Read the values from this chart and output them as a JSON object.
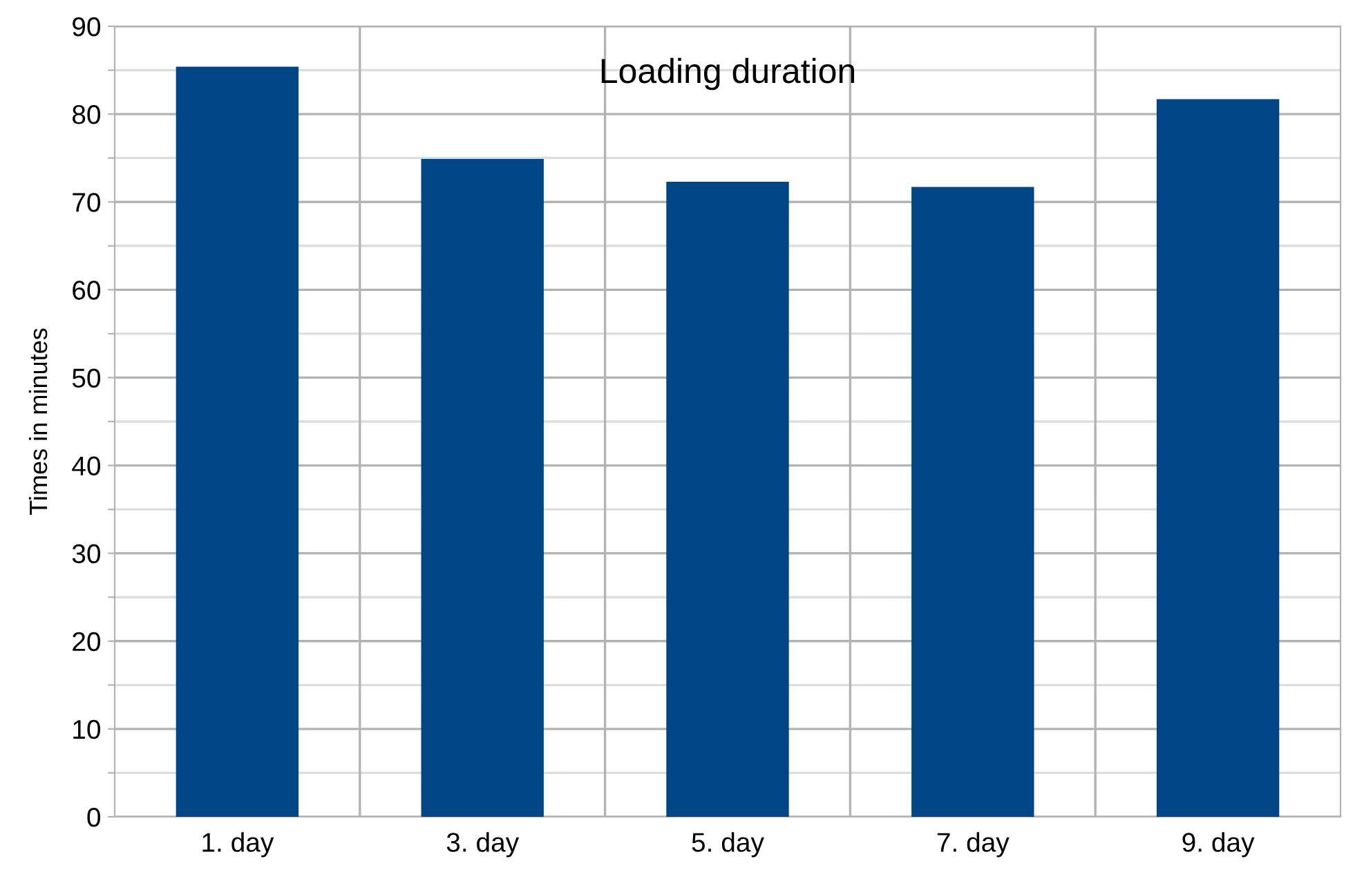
{
  "chart_data": {
    "type": "bar",
    "title": "Loading duration",
    "ylabel": "Times in minutes",
    "categories": [
      "1. day",
      "3. day",
      "5. day",
      "7. day",
      "9. day"
    ],
    "values": [
      85.4,
      74.9,
      72.3,
      71.7,
      81.7
    ],
    "color": "#004586",
    "ylim": [
      0,
      90
    ],
    "yticks": [
      0,
      {
        "value": 5,
        "label": null
      },
      10,
      {
        "value": 15,
        "label": null
      },
      20,
      {
        "value": 25,
        "label": null
      },
      30,
      {
        "value": 35,
        "label": null
      },
      40,
      {
        "value": 45,
        "label": null
      },
      50,
      {
        "value": 55,
        "label": null
      },
      60,
      {
        "value": 65,
        "label": null
      },
      70,
      {
        "value": 75,
        "label": null
      },
      80,
      {
        "value": 85,
        "label": null
      },
      90
    ],
    "grid": true,
    "legend": false
  }
}
